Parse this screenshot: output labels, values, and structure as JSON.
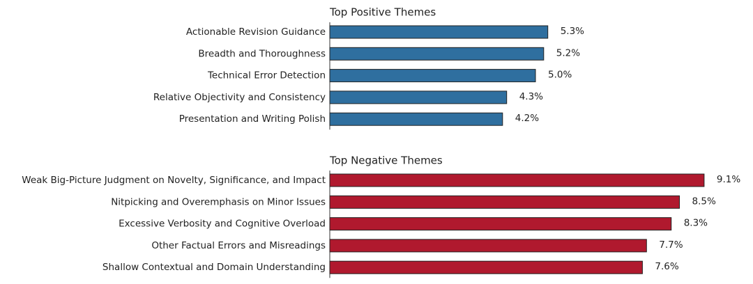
{
  "chart_data": [
    {
      "type": "barh",
      "title": "Top Positive Themes",
      "categories": [
        "Actionable Revision Guidance",
        "Breadth and Thoroughness",
        "Technical Error Detection",
        "Relative Objectivity and Consistency",
        "Presentation and Writing Polish"
      ],
      "values": [
        5.3,
        5.2,
        5.0,
        4.3,
        4.2
      ],
      "value_labels": [
        "5.3%",
        "5.2%",
        "5.0%",
        "4.3%",
        "4.2%"
      ],
      "color": "#2f6f9f",
      "xlim": [
        0,
        10
      ]
    },
    {
      "type": "barh",
      "title": "Top Negative Themes",
      "categories": [
        "Weak Big-Picture Judgment on Novelty, Significance, and Impact",
        "Nitpicking and Overemphasis on Minor Issues",
        "Excessive Verbosity and Cognitive Overload",
        "Other Factual Errors and Misreadings",
        "Shallow Contextual and Domain Understanding"
      ],
      "values": [
        9.1,
        8.5,
        8.3,
        7.7,
        7.6
      ],
      "value_labels": [
        "9.1%",
        "8.5%",
        "8.3%",
        "7.7%",
        "7.6%"
      ],
      "color": "#b0192e",
      "xlim": [
        0,
        10
      ]
    }
  ]
}
